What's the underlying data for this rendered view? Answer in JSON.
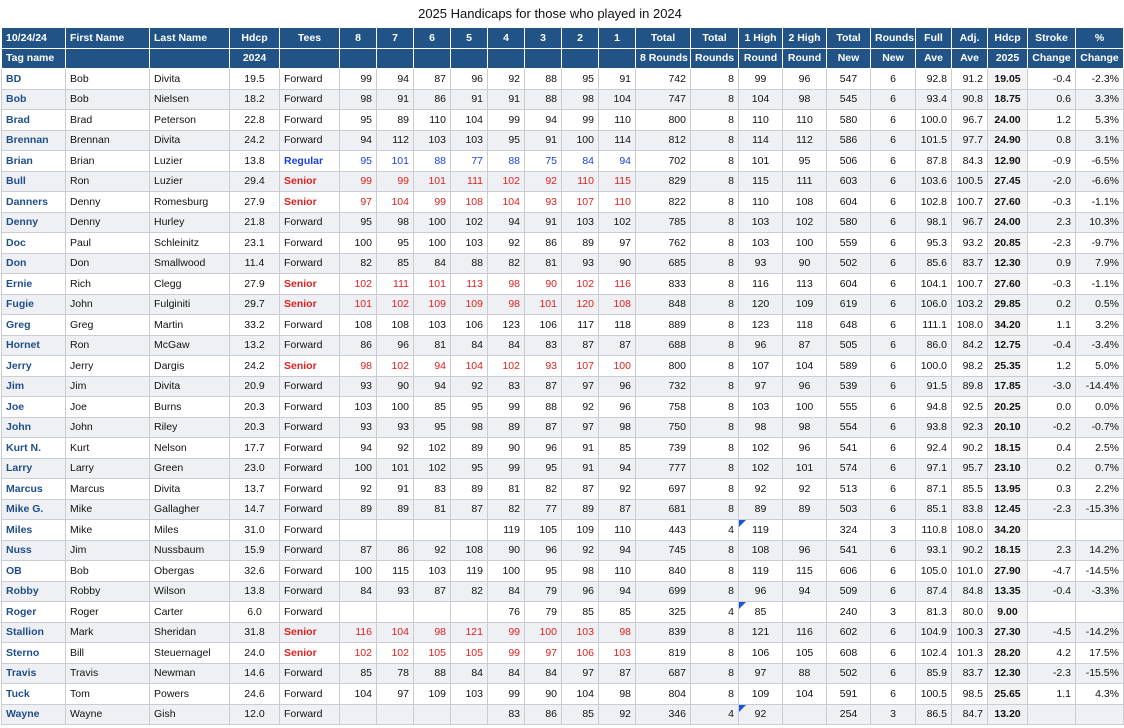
{
  "title": "2025 Handicaps for those who played in  2024",
  "header_row1": [
    "10/24/24",
    "First Name",
    "Last Name",
    "Hdcp",
    "Tees",
    "8",
    "7",
    "6",
    "5",
    "4",
    "3",
    "2",
    "1",
    "Total",
    "Total",
    "1 High",
    "2 High",
    "Total",
    "Rounds",
    "Full",
    "Adj.",
    "Hdcp",
    "Stroke",
    "%"
  ],
  "header_row2": [
    "Tag name",
    "",
    "",
    "2024",
    "",
    "",
    "",
    "",
    "",
    "",
    "",
    "",
    "",
    "8 Rounds",
    "Rounds",
    "Round",
    "Round",
    "New",
    "New",
    "Ave",
    "Ave",
    "2025",
    "Change",
    "Change"
  ],
  "colors": {
    "header_bg": "#215386",
    "tag": "#1f4e8c",
    "senior": "#e02020",
    "regular": "#1a3fe0",
    "flag": "#1a55d8"
  },
  "rows": [
    {
      "tag": "BD",
      "first": "Bob",
      "last": "Divita",
      "hdcp": "19.5",
      "tees": "Forward",
      "r": [
        "99",
        "94",
        "87",
        "96",
        "92",
        "88",
        "95",
        "91"
      ],
      "total8": "742",
      "rounds": "8",
      "high1": "99",
      "high2": "96",
      "totnew": "547",
      "rndnew": "6",
      "full": "92.8",
      "adj": "91.2",
      "h25": "19.05",
      "stroke": "-0.4",
      "pct": "-2.3%"
    },
    {
      "tag": "Bob",
      "first": "Bob",
      "last": "Nielsen",
      "hdcp": "18.2",
      "tees": "Forward",
      "r": [
        "98",
        "91",
        "86",
        "91",
        "91",
        "88",
        "98",
        "104"
      ],
      "total8": "747",
      "rounds": "8",
      "high1": "104",
      "high2": "98",
      "totnew": "545",
      "rndnew": "6",
      "full": "93.4",
      "adj": "90.8",
      "h25": "18.75",
      "stroke": "0.6",
      "pct": "3.3%"
    },
    {
      "tag": "Brad",
      "first": "Brad",
      "last": "Peterson",
      "hdcp": "22.8",
      "tees": "Forward",
      "r": [
        "95",
        "89",
        "110",
        "104",
        "99",
        "94",
        "99",
        "110"
      ],
      "total8": "800",
      "rounds": "8",
      "high1": "110",
      "high2": "110",
      "totnew": "580",
      "rndnew": "6",
      "full": "100.0",
      "adj": "96.7",
      "h25": "24.00",
      "stroke": "1.2",
      "pct": "5.3%"
    },
    {
      "tag": "Brennan",
      "first": "Brennan",
      "last": "Divita",
      "hdcp": "24.2",
      "tees": "Forward",
      "r": [
        "94",
        "112",
        "103",
        "103",
        "95",
        "91",
        "100",
        "114"
      ],
      "total8": "812",
      "rounds": "8",
      "high1": "114",
      "high2": "112",
      "totnew": "586",
      "rndnew": "6",
      "full": "101.5",
      "adj": "97.7",
      "h25": "24.90",
      "stroke": "0.8",
      "pct": "3.1%"
    },
    {
      "tag": "Brian",
      "first": "Brian",
      "last": "Luzier",
      "hdcp": "13.8",
      "tees": "Regular",
      "r": [
        "95",
        "101",
        "88",
        "77",
        "88",
        "75",
        "84",
        "94"
      ],
      "total8": "702",
      "rounds": "8",
      "high1": "101",
      "high2": "95",
      "totnew": "506",
      "rndnew": "6",
      "full": "87.8",
      "adj": "84.3",
      "h25": "12.90",
      "stroke": "-0.9",
      "pct": "-6.5%"
    },
    {
      "tag": "Bull",
      "first": "Ron",
      "last": "Luzier",
      "hdcp": "29.4",
      "tees": "Senior",
      "r": [
        "99",
        "99",
        "101",
        "111",
        "102",
        "92",
        "110",
        "115"
      ],
      "total8": "829",
      "rounds": "8",
      "high1": "115",
      "high2": "111",
      "totnew": "603",
      "rndnew": "6",
      "full": "103.6",
      "adj": "100.5",
      "h25": "27.45",
      "stroke": "-2.0",
      "pct": "-6.6%"
    },
    {
      "tag": "Danners",
      "first": "Denny",
      "last": "Romesburg",
      "hdcp": "27.9",
      "tees": "Senior",
      "r": [
        "97",
        "104",
        "99",
        "108",
        "104",
        "93",
        "107",
        "110"
      ],
      "total8": "822",
      "rounds": "8",
      "high1": "110",
      "high2": "108",
      "totnew": "604",
      "rndnew": "6",
      "full": "102.8",
      "adj": "100.7",
      "h25": "27.60",
      "stroke": "-0.3",
      "pct": "-1.1%"
    },
    {
      "tag": "Denny",
      "first": "Denny",
      "last": "Hurley",
      "hdcp": "21.8",
      "tees": "Forward",
      "r": [
        "95",
        "98",
        "100",
        "102",
        "94",
        "91",
        "103",
        "102"
      ],
      "total8": "785",
      "rounds": "8",
      "high1": "103",
      "high2": "102",
      "totnew": "580",
      "rndnew": "6",
      "full": "98.1",
      "adj": "96.7",
      "h25": "24.00",
      "stroke": "2.3",
      "pct": "10.3%"
    },
    {
      "tag": "Doc",
      "first": "Paul",
      "last": "Schleinitz",
      "hdcp": "23.1",
      "tees": "Forward",
      "r": [
        "100",
        "95",
        "100",
        "103",
        "92",
        "86",
        "89",
        "97"
      ],
      "total8": "762",
      "rounds": "8",
      "high1": "103",
      "high2": "100",
      "totnew": "559",
      "rndnew": "6",
      "full": "95.3",
      "adj": "93.2",
      "h25": "20.85",
      "stroke": "-2.3",
      "pct": "-9.7%"
    },
    {
      "tag": "Don",
      "first": "Don",
      "last": "Smallwood",
      "hdcp": "11.4",
      "tees": "Forward",
      "r": [
        "82",
        "85",
        "84",
        "88",
        "82",
        "81",
        "93",
        "90"
      ],
      "total8": "685",
      "rounds": "8",
      "high1": "93",
      "high2": "90",
      "totnew": "502",
      "rndnew": "6",
      "full": "85.6",
      "adj": "83.7",
      "h25": "12.30",
      "stroke": "0.9",
      "pct": "7.9%"
    },
    {
      "tag": "Ernie",
      "first": "Rich",
      "last": "Clegg",
      "hdcp": "27.9",
      "tees": "Senior",
      "r": [
        "102",
        "111",
        "101",
        "113",
        "98",
        "90",
        "102",
        "116"
      ],
      "total8": "833",
      "rounds": "8",
      "high1": "116",
      "high2": "113",
      "totnew": "604",
      "rndnew": "6",
      "full": "104.1",
      "adj": "100.7",
      "h25": "27.60",
      "stroke": "-0.3",
      "pct": "-1.1%"
    },
    {
      "tag": "Fugie",
      "first": "John",
      "last": "Fulginiti",
      "hdcp": "29.7",
      "tees": "Senior",
      "r": [
        "101",
        "102",
        "109",
        "109",
        "98",
        "101",
        "120",
        "108"
      ],
      "total8": "848",
      "rounds": "8",
      "high1": "120",
      "high2": "109",
      "totnew": "619",
      "rndnew": "6",
      "full": "106.0",
      "adj": "103.2",
      "h25": "29.85",
      "stroke": "0.2",
      "pct": "0.5%"
    },
    {
      "tag": "Greg",
      "first": "Greg",
      "last": "Martin",
      "hdcp": "33.2",
      "tees": "Forward",
      "r": [
        "108",
        "108",
        "103",
        "106",
        "123",
        "106",
        "117",
        "118"
      ],
      "total8": "889",
      "rounds": "8",
      "high1": "123",
      "high2": "118",
      "totnew": "648",
      "rndnew": "6",
      "full": "111.1",
      "adj": "108.0",
      "h25": "34.20",
      "stroke": "1.1",
      "pct": "3.2%"
    },
    {
      "tag": "Hornet",
      "first": "Ron",
      "last": "McGaw",
      "hdcp": "13.2",
      "tees": "Forward",
      "r": [
        "86",
        "96",
        "81",
        "84",
        "84",
        "83",
        "87",
        "87"
      ],
      "total8": "688",
      "rounds": "8",
      "high1": "96",
      "high2": "87",
      "totnew": "505",
      "rndnew": "6",
      "full": "86.0",
      "adj": "84.2",
      "h25": "12.75",
      "stroke": "-0.4",
      "pct": "-3.4%"
    },
    {
      "tag": "Jerry",
      "first": "Jerry",
      "last": "Dargis",
      "hdcp": "24.2",
      "tees": "Senior",
      "r": [
        "98",
        "102",
        "94",
        "104",
        "102",
        "93",
        "107",
        "100"
      ],
      "total8": "800",
      "rounds": "8",
      "high1": "107",
      "high2": "104",
      "totnew": "589",
      "rndnew": "6",
      "full": "100.0",
      "adj": "98.2",
      "h25": "25.35",
      "stroke": "1.2",
      "pct": "5.0%"
    },
    {
      "tag": "Jim",
      "first": "Jim",
      "last": "Divita",
      "hdcp": "20.9",
      "tees": "Forward",
      "r": [
        "93",
        "90",
        "94",
        "92",
        "83",
        "87",
        "97",
        "96"
      ],
      "total8": "732",
      "rounds": "8",
      "high1": "97",
      "high2": "96",
      "totnew": "539",
      "rndnew": "6",
      "full": "91.5",
      "adj": "89.8",
      "h25": "17.85",
      "stroke": "-3.0",
      "pct": "-14.4%"
    },
    {
      "tag": "Joe",
      "first": "Joe",
      "last": "Burns",
      "hdcp": "20.3",
      "tees": "Forward",
      "r": [
        "103",
        "100",
        "85",
        "95",
        "99",
        "88",
        "92",
        "96"
      ],
      "total8": "758",
      "rounds": "8",
      "high1": "103",
      "high2": "100",
      "totnew": "555",
      "rndnew": "6",
      "full": "94.8",
      "adj": "92.5",
      "h25": "20.25",
      "stroke": "0.0",
      "pct": "0.0%"
    },
    {
      "tag": "John",
      "first": "John",
      "last": "Riley",
      "hdcp": "20.3",
      "tees": "Forward",
      "r": [
        "93",
        "93",
        "95",
        "98",
        "89",
        "87",
        "97",
        "98"
      ],
      "total8": "750",
      "rounds": "8",
      "high1": "98",
      "high2": "98",
      "totnew": "554",
      "rndnew": "6",
      "full": "93.8",
      "adj": "92.3",
      "h25": "20.10",
      "stroke": "-0.2",
      "pct": "-0.7%"
    },
    {
      "tag": "Kurt N.",
      "first": "Kurt",
      "last": "Nelson",
      "hdcp": "17.7",
      "tees": "Forward",
      "r": [
        "94",
        "92",
        "102",
        "89",
        "90",
        "96",
        "91",
        "85"
      ],
      "total8": "739",
      "rounds": "8",
      "high1": "102",
      "high2": "96",
      "totnew": "541",
      "rndnew": "6",
      "full": "92.4",
      "adj": "90.2",
      "h25": "18.15",
      "stroke": "0.4",
      "pct": "2.5%"
    },
    {
      "tag": "Larry",
      "first": "Larry",
      "last": "Green",
      "hdcp": "23.0",
      "tees": "Forward",
      "r": [
        "100",
        "101",
        "102",
        "95",
        "99",
        "95",
        "91",
        "94"
      ],
      "total8": "777",
      "rounds": "8",
      "high1": "102",
      "high2": "101",
      "totnew": "574",
      "rndnew": "6",
      "full": "97.1",
      "adj": "95.7",
      "h25": "23.10",
      "stroke": "0.2",
      "pct": "0.7%"
    },
    {
      "tag": "Marcus",
      "first": "Marcus",
      "last": "Divita",
      "hdcp": "13.7",
      "tees": "Forward",
      "r": [
        "92",
        "91",
        "83",
        "89",
        "81",
        "82",
        "87",
        "92"
      ],
      "total8": "697",
      "rounds": "8",
      "high1": "92",
      "high2": "92",
      "totnew": "513",
      "rndnew": "6",
      "full": "87.1",
      "adj": "85.5",
      "h25": "13.95",
      "stroke": "0.3",
      "pct": "2.2%"
    },
    {
      "tag": "Mike G.",
      "first": "Mike",
      "last": "Gallagher",
      "hdcp": "14.7",
      "tees": "Forward",
      "r": [
        "89",
        "89",
        "81",
        "87",
        "82",
        "77",
        "89",
        "87"
      ],
      "total8": "681",
      "rounds": "8",
      "high1": "89",
      "high2": "89",
      "totnew": "503",
      "rndnew": "6",
      "full": "85.1",
      "adj": "83.8",
      "h25": "12.45",
      "stroke": "-2.3",
      "pct": "-15.3%"
    },
    {
      "tag": "Miles",
      "first": "Mike",
      "last": "Miles",
      "hdcp": "31.0",
      "tees": "Forward",
      "r": [
        "",
        "",
        "",
        "",
        "119",
        "105",
        "109",
        "110"
      ],
      "total8": "443",
      "rounds": "4",
      "flag": true,
      "high1": "119",
      "high2": "",
      "totnew": "324",
      "rndnew": "3",
      "full": "110.8",
      "adj": "108.0",
      "h25": "34.20",
      "stroke": "",
      "pct": ""
    },
    {
      "tag": "Nuss",
      "first": "Jim",
      "last": "Nussbaum",
      "hdcp": "15.9",
      "tees": "Forward",
      "r": [
        "87",
        "86",
        "92",
        "108",
        "90",
        "96",
        "92",
        "94"
      ],
      "total8": "745",
      "rounds": "8",
      "high1": "108",
      "high2": "96",
      "totnew": "541",
      "rndnew": "6",
      "full": "93.1",
      "adj": "90.2",
      "h25": "18.15",
      "stroke": "2.3",
      "pct": "14.2%"
    },
    {
      "tag": "OB",
      "first": "Bob",
      "last": "Obergas",
      "hdcp": "32.6",
      "tees": "Forward",
      "r": [
        "100",
        "115",
        "103",
        "119",
        "100",
        "95",
        "98",
        "110"
      ],
      "total8": "840",
      "rounds": "8",
      "high1": "119",
      "high2": "115",
      "totnew": "606",
      "rndnew": "6",
      "full": "105.0",
      "adj": "101.0",
      "h25": "27.90",
      "stroke": "-4.7",
      "pct": "-14.5%"
    },
    {
      "tag": "Robby",
      "first": "Robby",
      "last": "Wilson",
      "hdcp": "13.8",
      "tees": "Forward",
      "r": [
        "84",
        "93",
        "87",
        "82",
        "84",
        "79",
        "96",
        "94"
      ],
      "total8": "699",
      "rounds": "8",
      "high1": "96",
      "high2": "94",
      "totnew": "509",
      "rndnew": "6",
      "full": "87.4",
      "adj": "84.8",
      "h25": "13.35",
      "stroke": "-0.4",
      "pct": "-3.3%"
    },
    {
      "tag": "Roger",
      "first": "Roger",
      "last": "Carter",
      "hdcp": "6.0",
      "tees": "Forward",
      "r": [
        "",
        "",
        "",
        "",
        "76",
        "79",
        "85",
        "85"
      ],
      "total8": "325",
      "rounds": "4",
      "flag": true,
      "high1": "85",
      "high2": "",
      "totnew": "240",
      "rndnew": "3",
      "full": "81.3",
      "adj": "80.0",
      "h25": "9.00",
      "stroke": "",
      "pct": ""
    },
    {
      "tag": "Stallion",
      "first": "Mark",
      "last": "Sheridan",
      "hdcp": "31.8",
      "tees": "Senior",
      "r": [
        "116",
        "104",
        "98",
        "121",
        "99",
        "100",
        "103",
        "98"
      ],
      "total8": "839",
      "rounds": "8",
      "high1": "121",
      "high2": "116",
      "totnew": "602",
      "rndnew": "6",
      "full": "104.9",
      "adj": "100.3",
      "h25": "27.30",
      "stroke": "-4.5",
      "pct": "-14.2%"
    },
    {
      "tag": "Sterno",
      "first": "Bill",
      "last": "Steuernagel",
      "hdcp": "24.0",
      "tees": "Senior",
      "r": [
        "102",
        "102",
        "105",
        "105",
        "99",
        "97",
        "106",
        "103"
      ],
      "total8": "819",
      "rounds": "8",
      "high1": "106",
      "high2": "105",
      "totnew": "608",
      "rndnew": "6",
      "full": "102.4",
      "adj": "101.3",
      "h25": "28.20",
      "stroke": "4.2",
      "pct": "17.5%"
    },
    {
      "tag": "Travis",
      "first": "Travis",
      "last": "Newman",
      "hdcp": "14.6",
      "tees": "Forward",
      "r": [
        "85",
        "78",
        "88",
        "84",
        "84",
        "84",
        "97",
        "87"
      ],
      "total8": "687",
      "rounds": "8",
      "high1": "97",
      "high2": "88",
      "totnew": "502",
      "rndnew": "6",
      "full": "85.9",
      "adj": "83.7",
      "h25": "12.30",
      "stroke": "-2.3",
      "pct": "-15.5%"
    },
    {
      "tag": "Tuck",
      "first": "Tom",
      "last": "Powers",
      "hdcp": "24.6",
      "tees": "Forward",
      "r": [
        "104",
        "97",
        "109",
        "103",
        "99",
        "90",
        "104",
        "98"
      ],
      "total8": "804",
      "rounds": "8",
      "high1": "109",
      "high2": "104",
      "totnew": "591",
      "rndnew": "6",
      "full": "100.5",
      "adj": "98.5",
      "h25": "25.65",
      "stroke": "1.1",
      "pct": "4.3%"
    },
    {
      "tag": "Wayne",
      "first": "Wayne",
      "last": "Gish",
      "hdcp": "12.0",
      "tees": "Forward",
      "r": [
        "",
        "",
        "",
        "",
        "83",
        "86",
        "85",
        "92"
      ],
      "total8": "346",
      "rounds": "4",
      "flag": true,
      "high1": "92",
      "high2": "",
      "totnew": "254",
      "rndnew": "3",
      "full": "86.5",
      "adj": "84.7",
      "h25": "13.20",
      "stroke": "",
      "pct": ""
    }
  ]
}
